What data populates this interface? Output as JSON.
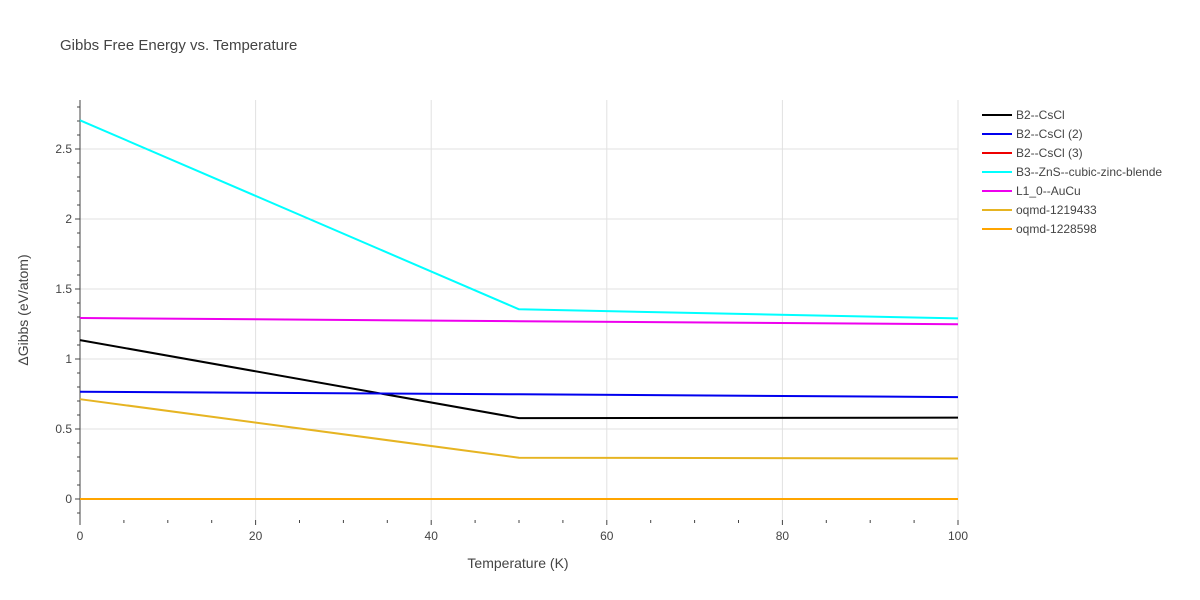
{
  "chart_data": {
    "type": "line",
    "title": "Gibbs Free Energy vs. Temperature",
    "xlabel": "Temperature (K)",
    "ylabel": "ΔGibbs (eV/atom)",
    "xlim": [
      0,
      100
    ],
    "ylim": [
      -0.15,
      2.85
    ],
    "x_ticks": [
      0,
      20,
      40,
      60,
      80,
      100
    ],
    "x_tick_labels": [
      "0",
      "20",
      "40",
      "60",
      "80",
      "100"
    ],
    "y_ticks": [
      0,
      0.5,
      1,
      1.5,
      2,
      2.5
    ],
    "y_tick_labels": [
      "0",
      "0.5",
      "1",
      "1.5",
      "2",
      "2.5"
    ],
    "grid": true,
    "legend_position": "right",
    "series": [
      {
        "name": "B2--CsCl",
        "color": "#000000",
        "x": [
          0,
          50,
          100
        ],
        "y": [
          1.135,
          0.578,
          0.581
        ]
      },
      {
        "name": "B2--CsCl (2)",
        "color": "#0000ee",
        "x": [
          0,
          50,
          100
        ],
        "y": [
          0.766,
          0.748,
          0.728
        ]
      },
      {
        "name": "B2--CsCl (3)",
        "color": "#ee0000",
        "x": [
          0,
          50,
          100
        ],
        "y": [
          0.0,
          0.0,
          0.0
        ]
      },
      {
        "name": "B3--ZnS--cubic-zinc-blende",
        "color": "#00ffff",
        "x": [
          0,
          50,
          100
        ],
        "y": [
          2.705,
          1.355,
          1.29
        ]
      },
      {
        "name": "L1_0--AuCu",
        "color": "#ee00ee",
        "x": [
          0,
          50,
          100
        ],
        "y": [
          1.293,
          1.27,
          1.248
        ]
      },
      {
        "name": "oqmd-1219433",
        "color": "#e6b422",
        "x": [
          0,
          50,
          100
        ],
        "y": [
          0.713,
          0.295,
          0.289
        ]
      },
      {
        "name": "oqmd-1228598",
        "color": "#ffa500",
        "x": [
          0,
          50,
          100
        ],
        "y": [
          0.0,
          0.0,
          0.0
        ]
      }
    ]
  }
}
